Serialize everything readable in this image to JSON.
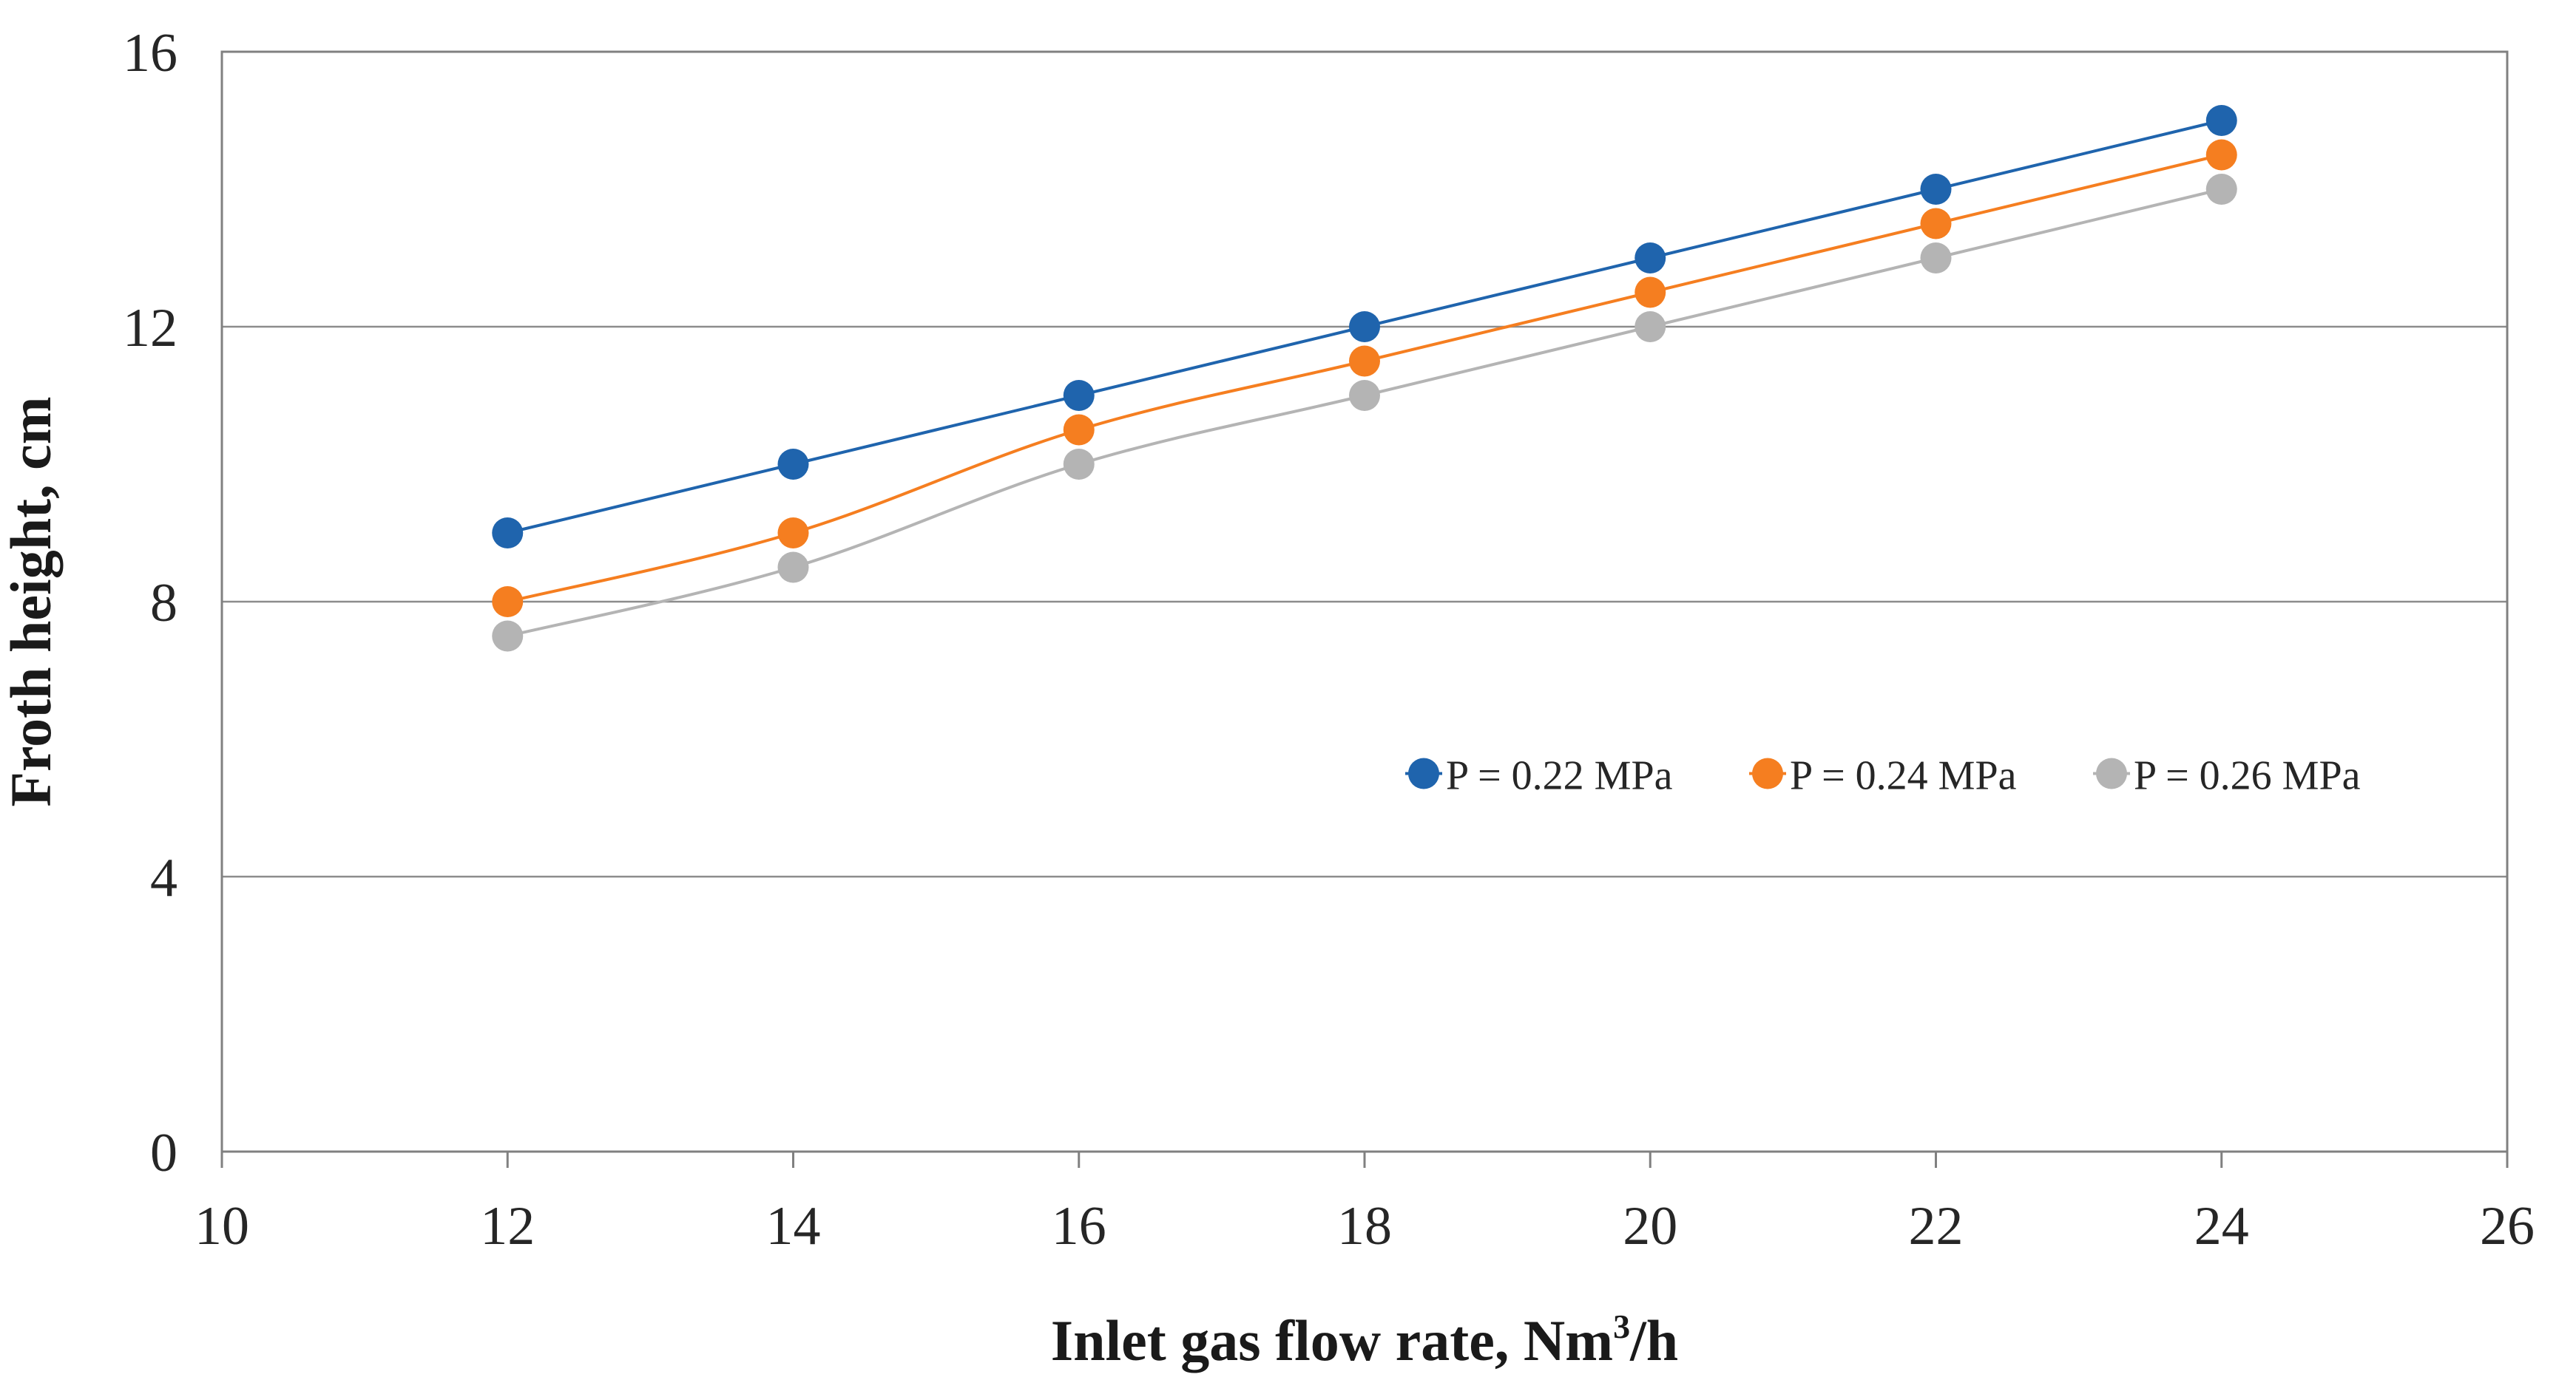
{
  "chart_data": {
    "type": "line",
    "title": "",
    "xlabel": "Inlet gas flow rate, Nm",
    "xlabel_superscript": "3",
    "xlabel_suffix": "/h",
    "ylabel": "Froth height, cm",
    "xlim": [
      10,
      26
    ],
    "ylim": [
      0,
      16
    ],
    "x_ticks": [
      10,
      12,
      14,
      16,
      18,
      20,
      22,
      24,
      26
    ],
    "y_ticks": [
      0,
      4,
      8,
      12,
      16
    ],
    "x_ticks_shown": [
      "10",
      "12",
      "14",
      "16",
      "18",
      "20",
      "22",
      "24",
      "26"
    ],
    "y_ticks_shown": [
      "0",
      "4",
      "8",
      "12",
      "16"
    ],
    "grid": "horizontal",
    "legend_position": "center-right",
    "x": [
      12,
      14,
      16,
      18,
      20,
      22,
      24
    ],
    "series": [
      {
        "name": "P = 0.22 MPa",
        "color": "#1f64ad",
        "values": [
          9,
          10,
          11,
          12,
          13,
          14,
          15
        ]
      },
      {
        "name": "P = 0.24 MPa",
        "color": "#f57e20",
        "values": [
          8,
          9,
          10.5,
          11.5,
          12.5,
          13.5,
          14.5
        ]
      },
      {
        "name": "P = 0.26 MPa",
        "color": "#b4b4b4",
        "values": [
          7.5,
          8.5,
          10,
          11,
          12,
          13,
          14
        ]
      }
    ]
  }
}
